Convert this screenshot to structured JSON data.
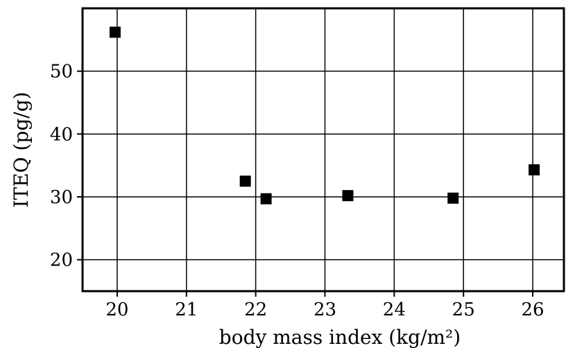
{
  "chart_data": {
    "type": "scatter",
    "title": "",
    "xlabel": "body mass index (kg/m²)",
    "ylabel": "ITEQ (pg/g)",
    "xlim": [
      19.5,
      26.45
    ],
    "ylim": [
      15,
      60
    ],
    "x_ticks": [
      20,
      21,
      22,
      23,
      24,
      25,
      26
    ],
    "y_ticks": [
      20,
      30,
      40,
      50
    ],
    "grid": true,
    "legend": "none",
    "marker": "square",
    "marker_color": "#000000",
    "series": [
      {
        "points": [
          {
            "x": 19.97,
            "y": 56.2
          },
          {
            "x": 21.85,
            "y": 32.5
          },
          {
            "x": 22.15,
            "y": 29.7
          },
          {
            "x": 23.33,
            "y": 30.2
          },
          {
            "x": 24.85,
            "y": 29.8
          },
          {
            "x": 26.02,
            "y": 34.3
          }
        ]
      }
    ]
  }
}
